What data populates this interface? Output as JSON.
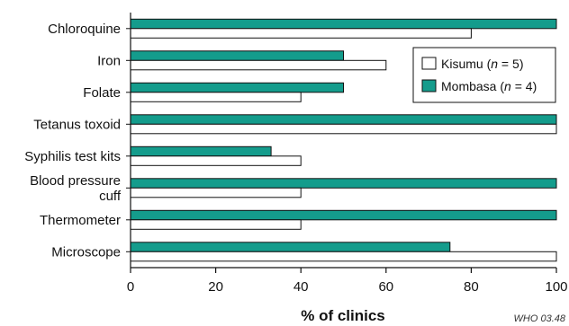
{
  "chart_data": {
    "type": "bar",
    "orientation": "horizontal",
    "categories": [
      "Chloroquine",
      "Iron",
      "Folate",
      "Tetanus toxoid",
      "Syphilis test kits",
      [
        "Blood pressure",
        "cuff"
      ],
      "Thermometer",
      "Microscope"
    ],
    "series": [
      {
        "name": "Mombasa",
        "n": "4",
        "color": "#149c8c",
        "values": [
          100,
          50,
          50,
          100,
          33,
          100,
          100,
          75
        ]
      },
      {
        "name": "Kisumu",
        "n": "5",
        "color": "#ffffff",
        "values": [
          80,
          60,
          40,
          100,
          40,
          40,
          40,
          100
        ]
      }
    ],
    "xlabel": "% of clinics",
    "xlim": [
      0,
      100
    ],
    "xticks": [
      0,
      20,
      40,
      60,
      80,
      100
    ],
    "legend_position": "top-right",
    "legend_order": [
      "Kisumu",
      "Mombasa"
    ],
    "grid": false
  },
  "credit": "WHO 03.48"
}
